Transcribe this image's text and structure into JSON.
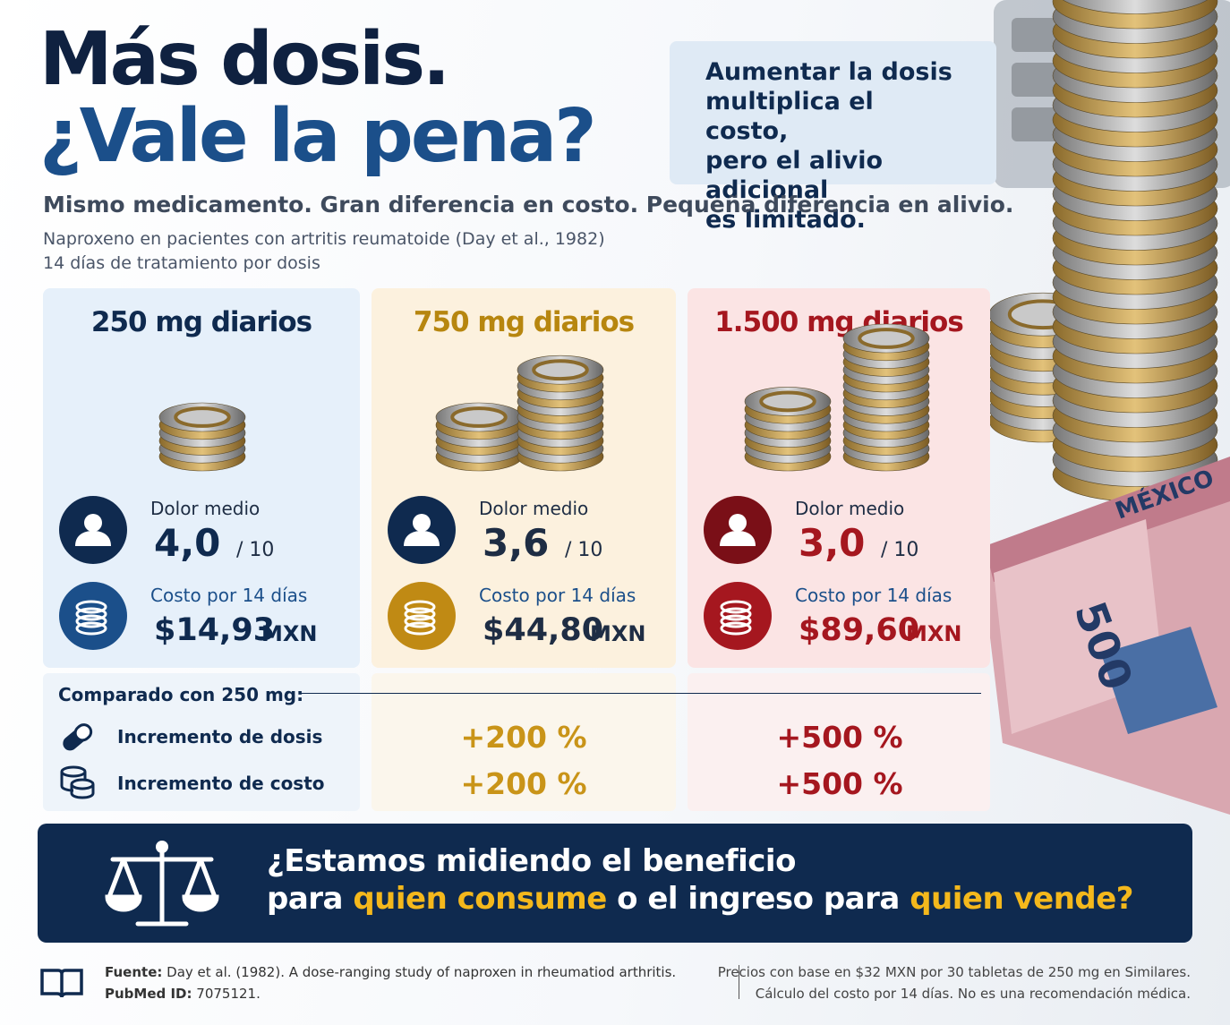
{
  "header": {
    "title_line1": "Más dosis.",
    "title_line2": "¿Vale la pena?",
    "callout_lines": [
      "Aumentar la dosis",
      "multiplica el costo,",
      "pero el alivio adicional",
      "es limitado."
    ],
    "subtitle": "Mismo medicamento. Gran diferencia en costo. Pequeña diferencia en alivio.",
    "study": "Naproxeno en pacientes con artritis reumatoide (Day et al., 1982)",
    "duration": "14 días de tratamiento por dosis"
  },
  "doses": [
    {
      "title": "250 mg diarios",
      "pain_label": "Dolor medio",
      "pain": "4,0",
      "pain_scale": "/ 10",
      "cost_label": "Costo por 14 días",
      "cost": "$14,93",
      "currency": "MXN"
    },
    {
      "title": "750 mg diarios",
      "pain_label": "Dolor medio",
      "pain": "3,6",
      "pain_scale": "/ 10",
      "cost_label": "Costo por 14 días",
      "cost": "$44,80",
      "currency": "MXN"
    },
    {
      "title": "1.500 mg diarios",
      "pain_label": "Dolor medio",
      "pain": "3,0",
      "pain_scale": "/ 10",
      "cost_label": "Costo por 14 días",
      "cost": "$89,60",
      "currency": "MXN"
    }
  ],
  "comparison": {
    "label": "Comparado con 250 mg:",
    "rows": [
      {
        "label": "Incremento de dosis",
        "values": [
          "+200 %",
          "+500 %"
        ]
      },
      {
        "label": "Incremento de costo",
        "values": [
          "+200 %",
          "+500 %"
        ]
      }
    ]
  },
  "banner": {
    "line1": "¿Estamos midiendo el beneficio",
    "part1": "para",
    "highlight1": "quien consume",
    "part2": "o el ingreso para",
    "highlight2": "quien vende?"
  },
  "footer": {
    "source_label": "Fuente:",
    "source": "Day et al. (1982). A dose-ranging study of naproxen in rheumatiod arthritis.",
    "pubmed_label": "PubMed ID:",
    "pubmed": "7075121.",
    "note_line1": "Precios con base en $32 MXN por 30 tabletas de 250 mg en Similares.",
    "note_line2": "Cálculo del costo por 14 días. No es una recomendación médica."
  }
}
